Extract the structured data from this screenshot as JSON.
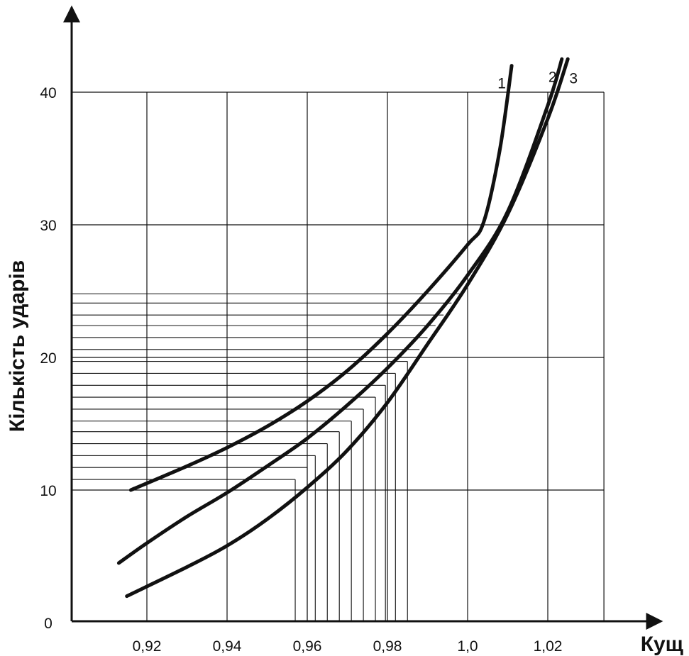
{
  "chart_data": {
    "type": "line",
    "xlabel": "Кущ",
    "ylabel": "Кількість ударів",
    "xlim": [
      0.905,
      1.035
    ],
    "ylim": [
      0,
      40
    ],
    "x_ticks": [
      {
        "value": 0.92,
        "label": "0,92"
      },
      {
        "value": 0.94,
        "label": "0,94"
      },
      {
        "value": 0.96,
        "label": "0,96"
      },
      {
        "value": 0.98,
        "label": "0,98"
      },
      {
        "value": 1.0,
        "label": "1,0"
      },
      {
        "value": 1.02,
        "label": "1,02"
      }
    ],
    "y_ticks": [
      {
        "value": 0,
        "label": "0"
      },
      {
        "value": 10,
        "label": "10"
      },
      {
        "value": 20,
        "label": "20"
      },
      {
        "value": 30,
        "label": "30"
      },
      {
        "value": 40,
        "label": "40"
      }
    ],
    "grid_x": [
      0.92,
      0.94,
      0.96,
      0.98,
      1.0,
      1.02,
      1.034
    ],
    "grid_y": [
      10,
      20,
      30,
      40
    ],
    "series": [
      {
        "name": "1",
        "points": [
          [
            0.916,
            10.0
          ],
          [
            0.93,
            11.8
          ],
          [
            0.94,
            13.2
          ],
          [
            0.95,
            14.8
          ],
          [
            0.96,
            16.7
          ],
          [
            0.97,
            19.0
          ],
          [
            0.98,
            21.8
          ],
          [
            0.99,
            25.0
          ],
          [
            1.0,
            28.5
          ],
          [
            1.004,
            30.2
          ],
          [
            1.008,
            35.6
          ],
          [
            1.011,
            42.0
          ]
        ]
      },
      {
        "name": "2",
        "points": [
          [
            0.913,
            4.5
          ],
          [
            0.92,
            6.0
          ],
          [
            0.93,
            8.0
          ],
          [
            0.94,
            9.8
          ],
          [
            0.95,
            11.8
          ],
          [
            0.96,
            13.9
          ],
          [
            0.97,
            16.4
          ],
          [
            0.98,
            19.2
          ],
          [
            0.99,
            22.4
          ],
          [
            1.0,
            26.2
          ],
          [
            1.01,
            31.0
          ],
          [
            1.02,
            39.0
          ],
          [
            1.0235,
            42.5
          ]
        ]
      },
      {
        "name": "3",
        "points": [
          [
            0.915,
            2.0
          ],
          [
            0.93,
            4.2
          ],
          [
            0.94,
            5.8
          ],
          [
            0.95,
            7.8
          ],
          [
            0.96,
            10.2
          ],
          [
            0.97,
            13.0
          ],
          [
            0.98,
            16.6
          ],
          [
            0.99,
            21.0
          ],
          [
            1.0,
            25.5
          ],
          [
            1.01,
            30.8
          ],
          [
            1.02,
            38.0
          ],
          [
            1.025,
            42.5
          ]
        ]
      }
    ],
    "reading_lines": [
      {
        "y": 10.8,
        "x": 0.957
      },
      {
        "y": 11.7,
        "x": 0.96
      },
      {
        "y": 12.6,
        "x": 0.962
      },
      {
        "y": 13.5,
        "x": 0.965
      },
      {
        "y": 14.4,
        "x": 0.968
      },
      {
        "y": 15.2,
        "x": 0.971
      },
      {
        "y": 16.1,
        "x": 0.974
      },
      {
        "y": 17.0,
        "x": 0.977
      },
      {
        "y": 17.9,
        "x": 0.9795
      },
      {
        "y": 18.8,
        "x": 0.982
      },
      {
        "y": 19.7,
        "x": 0.985
      },
      {
        "y": 20.6,
        "x": 0.988
      },
      {
        "y": 21.5,
        "x": 0.99
      },
      {
        "y": 22.4,
        "x": 0.992
      },
      {
        "y": 23.2,
        "x": 0.994
      },
      {
        "y": 24.1,
        "x": 0.996
      },
      {
        "y": 24.8,
        "x": 0.998
      }
    ],
    "vertical_extent": 20
  }
}
